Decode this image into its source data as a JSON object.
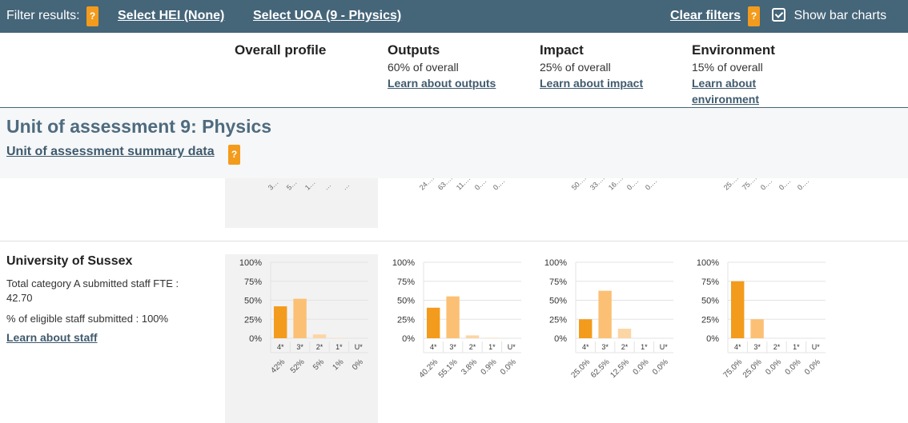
{
  "filters": {
    "label": "Filter results:",
    "help": "?",
    "hei": "Select HEI (None)",
    "uoa": "Select UOA (9 - Physics)",
    "clear": "Clear filters",
    "clear_help": "?",
    "show_bar_charts": "Show bar charts",
    "show_bar_charts_checked": true
  },
  "columns": [
    {
      "title": "Overall profile",
      "sub": "",
      "link": ""
    },
    {
      "title": "Outputs",
      "sub": "60% of overall",
      "link": "Learn about outputs"
    },
    {
      "title": "Impact",
      "sub": "25% of overall",
      "link": "Learn about impact"
    },
    {
      "title": "Environment",
      "sub": "15% of overall",
      "link_lines": [
        "Learn about",
        "environment"
      ]
    }
  ],
  "uoa": {
    "title": "Unit of assessment 9: Physics",
    "summary_link": "Unit of assessment summary data",
    "help": "?"
  },
  "previous_row_labels": [
    [
      "3…",
      "5…",
      "1…",
      "…",
      "…"
    ],
    [
      "24.…",
      "63.…",
      "11.…",
      "0.…",
      "0.…"
    ],
    [
      "50.…",
      "33.…",
      "16.…",
      "0.…",
      "0.…"
    ],
    [
      "25.…",
      "75.…",
      "0.…",
      "0.…",
      "0.…"
    ]
  ],
  "institution": {
    "name": "University of Sussex",
    "staff_fte": "Total category A submitted staff FTE : 42.70",
    "staff_fte_line1": "Total category A submitted staff FTE :",
    "staff_fte_line2": "42.70",
    "eligible": "% of eligible staff submitted : 100%",
    "learn_staff": "Learn about staff"
  },
  "bar_colors": {
    "4*": "#f39b1c",
    "3*": "#fbc074",
    "2*": "#fcd5a4",
    "1*": "#fde6c9",
    "U*": "#fef0e0"
  },
  "chart_data": [
    {
      "type": "bar",
      "name": "Overall profile",
      "categories": [
        "4*",
        "3*",
        "2*",
        "1*",
        "U*"
      ],
      "values": [
        42,
        52,
        5,
        1,
        0
      ],
      "value_labels": [
        "42%",
        "52%",
        "5%",
        "1%",
        "0%"
      ],
      "yticks": [
        "100%",
        "75%",
        "50%",
        "25%",
        "0%"
      ],
      "ylim": [
        0,
        100
      ]
    },
    {
      "type": "bar",
      "name": "Outputs",
      "categories": [
        "4*",
        "3*",
        "2*",
        "1*",
        "U*"
      ],
      "values": [
        40.2,
        55.1,
        3.8,
        0.9,
        0.0
      ],
      "value_labels": [
        "40.2%",
        "55.1%",
        "3.8%",
        "0.9%",
        "0.0%"
      ],
      "yticks": [
        "100%",
        "75%",
        "50%",
        "25%",
        "0%"
      ],
      "ylim": [
        0,
        100
      ]
    },
    {
      "type": "bar",
      "name": "Impact",
      "categories": [
        "4*",
        "3*",
        "2*",
        "1*",
        "U*"
      ],
      "values": [
        25.0,
        62.5,
        12.5,
        0.0,
        0.0
      ],
      "value_labels": [
        "25.0%",
        "62.5%",
        "12.5%",
        "0.0%",
        "0.0%"
      ],
      "yticks": [
        "100%",
        "75%",
        "50%",
        "25%",
        "0%"
      ],
      "ylim": [
        0,
        100
      ]
    },
    {
      "type": "bar",
      "name": "Environment",
      "categories": [
        "4*",
        "3*",
        "2*",
        "1*",
        "U*"
      ],
      "values": [
        75.0,
        25.0,
        0.0,
        0.0,
        0.0
      ],
      "value_labels": [
        "75.0%",
        "25.0%",
        "0.0%",
        "0.0%",
        "0.0%"
      ],
      "yticks": [
        "100%",
        "75%",
        "50%",
        "25%",
        "0%"
      ],
      "ylim": [
        0,
        100
      ]
    }
  ]
}
